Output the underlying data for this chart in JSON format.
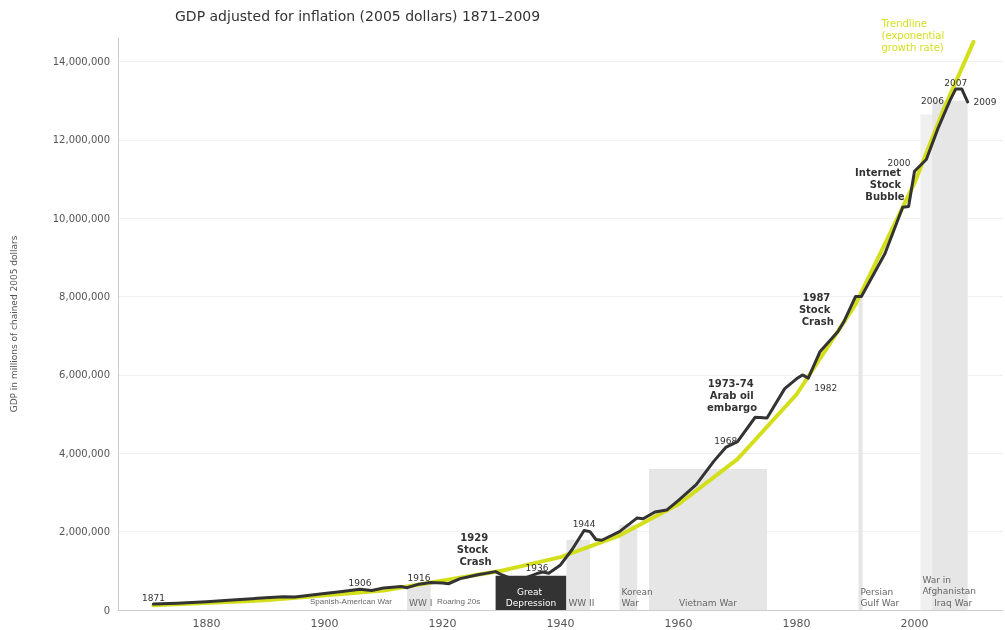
{
  "chart_data": {
    "type": "line",
    "subtitle": "GDP adjusted for inflation (2005 dollars) 1871–2009",
    "ylabel": "GDP in millions of chained 2005 dollars",
    "x": [
      1871,
      1875,
      1880,
      1885,
      1890,
      1893,
      1895,
      1900,
      1903,
      1906,
      1908,
      1910,
      1913,
      1914,
      1916,
      1918,
      1920,
      1921,
      1923,
      1926,
      1929,
      1930,
      1932,
      1933,
      1936,
      1937,
      1938,
      1940,
      1942,
      1944,
      1945,
      1946,
      1947,
      1950,
      1953,
      1954,
      1956,
      1958,
      1960,
      1963,
      1966,
      1968,
      1970,
      1973,
      1975,
      1978,
      1980,
      1981,
      1982,
      1984,
      1987,
      1988,
      1990,
      1991,
      1995,
      1998,
      1999,
      2000,
      2002,
      2004,
      2006,
      2007,
      2008,
      2009
    ],
    "series": [
      {
        "color": "#333333",
        "values": [
          150000,
          170000,
          210000,
          260000,
          310000,
          340000,
          330000,
          420000,
          470000,
          530000,
          500000,
          560000,
          600000,
          570000,
          660000,
          700000,
          690000,
          670000,
          800000,
          900000,
          980000,
          900000,
          780000,
          760000,
          930000,
          970000,
          940000,
          1150000,
          1550000,
          2030000,
          2000000,
          1800000,
          1780000,
          2000000,
          2350000,
          2330000,
          2500000,
          2550000,
          2800000,
          3200000,
          3800000,
          4150000,
          4300000,
          4920000,
          4900000,
          5650000,
          5900000,
          6000000,
          5920000,
          6600000,
          7100000,
          7350000,
          8000000,
          8000000,
          9100000,
          10280000,
          10300000,
          11200000,
          11500000,
          12300000,
          13000000,
          13300000,
          13300000,
          12970000
        ]
      },
      {
        "name": "Trendline (exponential growth rate)",
        "color": "#d4df1c",
        "type": "line",
        "x": [
          1871,
          1890,
          1910,
          1930,
          1940,
          1950,
          1960,
          1970,
          1980,
          1990,
          2000,
          2005,
          2010
        ],
        "values": [
          120000,
          250000,
          500000,
          1000000,
          1350000,
          1900000,
          2700000,
          3850000,
          5500000,
          7800000,
          10900000,
          12800000,
          14500000
        ]
      }
    ],
    "xlim": [
      1865,
      2015
    ],
    "xticks": [
      1880,
      1900,
      1920,
      1940,
      1960,
      1980,
      2000
    ],
    "ylim": [
      0,
      14600000
    ],
    "yticks": [
      0,
      {
        "value": 2000000,
        "label": "2,000,000"
      },
      {
        "value": 4000000,
        "label": "4,000,000"
      },
      {
        "value": 6000000,
        "label": "6,000,000"
      },
      {
        "value": 8000000,
        "label": "8,000,000"
      },
      {
        "value": 10000000,
        "label": "10,000,000"
      },
      {
        "value": 12000000,
        "label": "12,000,000"
      },
      {
        "value": 14000000,
        "label": "14,000,000"
      }
    ],
    "grid": "y",
    "marker": "none",
    "line_style": "solid",
    "bands": [
      {
        "axis": "x",
        "from": 1914,
        "to": 1918,
        "label": "WW I",
        "color": "#e6e6e6"
      },
      {
        "axis": "x",
        "from": 1929,
        "to": 1941,
        "label": "Great Depression",
        "color": "#333333"
      },
      {
        "axis": "x",
        "from": 1941,
        "to": 1945,
        "label": "WW II",
        "color": "#e6e6e6"
      },
      {
        "axis": "x",
        "from": 1950,
        "to": 1953,
        "label": "Korean War",
        "color": "#e6e6e6"
      },
      {
        "axis": "x",
        "from": 1955,
        "to": 1975,
        "label": "Vietnam War",
        "color": "#e6e6e6"
      },
      {
        "axis": "x",
        "from": 1990.5,
        "to": 1991.2,
        "label": "Persian Gulf War",
        "color": "#e6e6e6"
      },
      {
        "axis": "x",
        "from": 2001,
        "to": 2009,
        "label": "War in Afghanistan",
        "color": "#f0f0f0"
      },
      {
        "axis": "x",
        "from": 2003,
        "to": 2009,
        "label": "Iraq War",
        "color": "#e6e6e6"
      }
    ],
    "annotations": [
      "Spanish-American War",
      "Roaring 20s",
      {
        "text": "1871",
        "x": 1871,
        "y": 150000
      },
      {
        "text": "1906",
        "x": 1906,
        "y": 530000
      },
      {
        "text": "1916",
        "x": 1916,
        "y": 660000
      },
      {
        "text": "1929 Stock Crash",
        "x": 1929,
        "y": 980000
      },
      {
        "text": "1936",
        "x": 1936,
        "y": 930000
      },
      {
        "text": "1944",
        "x": 1944,
        "y": 2030000
      },
      {
        "text": "1968",
        "x": 1968,
        "y": 4150000
      },
      {
        "text": "1973-74 Arab oil embargo",
        "x": 1974,
        "y": 4910000
      },
      {
        "text": "1982",
        "x": 1982,
        "y": 5920000
      },
      {
        "text": "1987 Stock Crash",
        "x": 1987,
        "y": 7100000
      },
      {
        "text": "Internet Stock Bubble",
        "x": 1999,
        "y": 10300000
      },
      {
        "text": "2000",
        "x": 2000,
        "y": 11200000
      },
      {
        "text": "2006",
        "x": 2006,
        "y": 13000000
      },
      {
        "text": "2007",
        "x": 2007,
        "y": 13300000
      },
      {
        "text": "2009",
        "x": 2009,
        "y": 12970000
      }
    ]
  }
}
